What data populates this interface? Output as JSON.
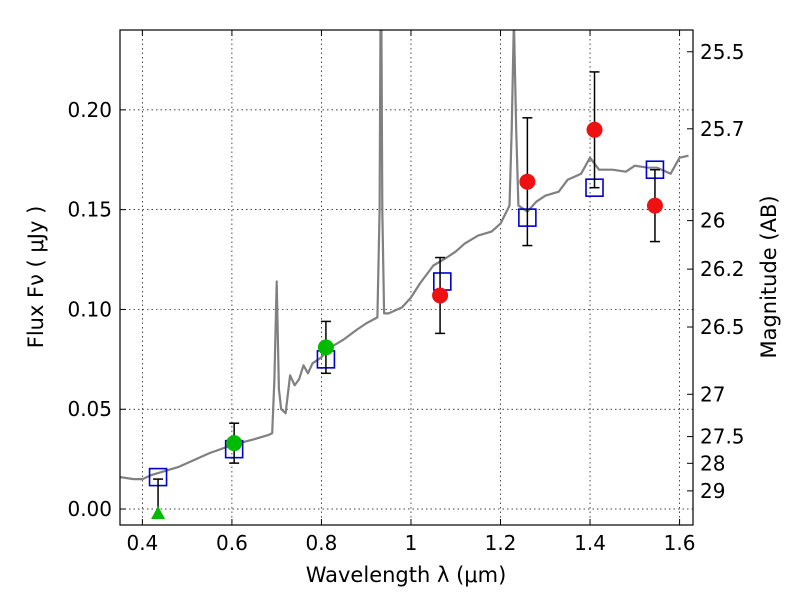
{
  "chart_data": {
    "type": "scatter",
    "xlabel": "Wavelength  λ (μm)",
    "ylabel": "Flux  Fν  ( μJy )",
    "y2label": "Magnitude (AB)",
    "xlim": [
      0.35,
      1.63
    ],
    "ylim": [
      -0.008,
      0.24
    ],
    "grid": true,
    "x_ticks": [
      {
        "v": 0.4,
        "label": "0.4"
      },
      {
        "v": 0.6,
        "label": "0.6"
      },
      {
        "v": 0.8,
        "label": "0.8"
      },
      {
        "v": 1.0,
        "label": "1"
      },
      {
        "v": 1.2,
        "label": "1.2"
      },
      {
        "v": 1.4,
        "label": "1.4"
      },
      {
        "v": 1.6,
        "label": "1.6"
      }
    ],
    "y_ticks": [
      {
        "v": 0.0,
        "label": "0.00"
      },
      {
        "v": 0.05,
        "label": "0.05"
      },
      {
        "v": 0.1,
        "label": "0.10"
      },
      {
        "v": 0.15,
        "label": "0.15"
      },
      {
        "v": 0.2,
        "label": "0.20"
      }
    ],
    "y2_ticks": [
      {
        "label": "25.5",
        "flux": 0.2291
      },
      {
        "label": "25.7",
        "flux": 0.1905
      },
      {
        "label": "26",
        "flux": 0.1445
      },
      {
        "label": "26.2",
        "flux": 0.1202
      },
      {
        "label": "26.5",
        "flux": 0.0912
      },
      {
        "label": "27",
        "flux": 0.0575
      },
      {
        "label": "27.5",
        "flux": 0.0363
      },
      {
        "label": "28",
        "flux": 0.0229
      },
      {
        "label": "29",
        "flux": 0.0091
      }
    ],
    "series": [
      {
        "kind": "spectrum_line",
        "color": "#808080",
        "points": [
          [
            0.35,
            0.016
          ],
          [
            0.38,
            0.015
          ],
          [
            0.4,
            0.015
          ],
          [
            0.42,
            0.017
          ],
          [
            0.45,
            0.019
          ],
          [
            0.48,
            0.021
          ],
          [
            0.5,
            0.023
          ],
          [
            0.55,
            0.028
          ],
          [
            0.6,
            0.032
          ],
          [
            0.65,
            0.035
          ],
          [
            0.68,
            0.037
          ],
          [
            0.69,
            0.038
          ],
          [
            0.695,
            0.065
          ],
          [
            0.7,
            0.114
          ],
          [
            0.705,
            0.06
          ],
          [
            0.71,
            0.05
          ],
          [
            0.72,
            0.048
          ],
          [
            0.73,
            0.067
          ],
          [
            0.74,
            0.062
          ],
          [
            0.75,
            0.065
          ],
          [
            0.76,
            0.072
          ],
          [
            0.77,
            0.068
          ],
          [
            0.78,
            0.073
          ],
          [
            0.8,
            0.076
          ],
          [
            0.82,
            0.081
          ],
          [
            0.85,
            0.085
          ],
          [
            0.88,
            0.09
          ],
          [
            0.9,
            0.093
          ],
          [
            0.925,
            0.096
          ],
          [
            0.93,
            0.15
          ],
          [
            0.932,
            0.245
          ],
          [
            0.934,
            0.245
          ],
          [
            0.936,
            0.15
          ],
          [
            0.94,
            0.098
          ],
          [
            0.95,
            0.098
          ],
          [
            0.98,
            0.101
          ],
          [
            1.0,
            0.106
          ],
          [
            1.02,
            0.113
          ],
          [
            1.05,
            0.122
          ],
          [
            1.08,
            0.126
          ],
          [
            1.1,
            0.129
          ],
          [
            1.12,
            0.133
          ],
          [
            1.15,
            0.137
          ],
          [
            1.18,
            0.139
          ],
          [
            1.2,
            0.143
          ],
          [
            1.22,
            0.152
          ],
          [
            1.225,
            0.19
          ],
          [
            1.23,
            0.245
          ],
          [
            1.235,
            0.19
          ],
          [
            1.24,
            0.152
          ],
          [
            1.26,
            0.149
          ],
          [
            1.28,
            0.154
          ],
          [
            1.3,
            0.157
          ],
          [
            1.33,
            0.159
          ],
          [
            1.35,
            0.165
          ],
          [
            1.38,
            0.168
          ],
          [
            1.4,
            0.176
          ],
          [
            1.42,
            0.17
          ],
          [
            1.45,
            0.17
          ],
          [
            1.48,
            0.169
          ],
          [
            1.5,
            0.172
          ],
          [
            1.53,
            0.171
          ],
          [
            1.55,
            0.171
          ],
          [
            1.58,
            0.168
          ],
          [
            1.6,
            0.176
          ],
          [
            1.62,
            0.177
          ]
        ]
      },
      {
        "kind": "model_points",
        "marker": "square",
        "color": "#0000cc",
        "points": [
          [
            0.435,
            0.016
          ],
          [
            0.605,
            0.03
          ],
          [
            0.81,
            0.075
          ],
          [
            1.07,
            0.114
          ],
          [
            1.26,
            0.146
          ],
          [
            1.41,
            0.161
          ],
          [
            1.545,
            0.17
          ]
        ]
      },
      {
        "kind": "observed",
        "marker": "circle",
        "color": "#00bb00",
        "points": [
          {
            "x": 0.605,
            "y": 0.033,
            "err": 0.01
          },
          {
            "x": 0.81,
            "y": 0.081,
            "err": 0.013
          }
        ]
      },
      {
        "kind": "upper_limit",
        "marker": "triangle",
        "color": "#00bb00",
        "points": [
          {
            "x": 0.435,
            "y": -0.002,
            "err_up": 0.017
          }
        ]
      },
      {
        "kind": "observed",
        "marker": "circle",
        "color": "#ee1111",
        "points": [
          {
            "x": 1.065,
            "y": 0.107,
            "err": 0.019
          },
          {
            "x": 1.26,
            "y": 0.164,
            "err": 0.032
          },
          {
            "x": 1.41,
            "y": 0.19,
            "err": 0.029
          },
          {
            "x": 1.545,
            "y": 0.152,
            "err": 0.018
          }
        ]
      }
    ]
  }
}
